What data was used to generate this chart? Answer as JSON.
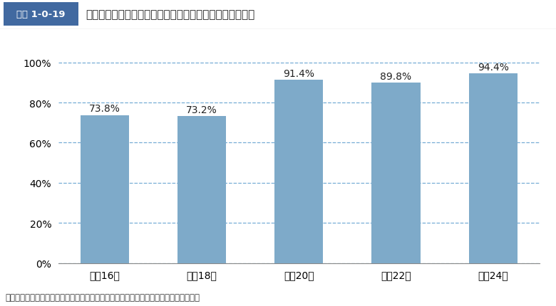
{
  "categories": [
    "平成16年",
    "平成18年",
    "平成20年",
    "平成22年",
    "平成24年"
  ],
  "values": [
    73.8,
    73.2,
    91.4,
    89.8,
    94.4
  ],
  "bar_color": "#7eaac9",
  "title_box_label": "図表 1-0-19",
  "title_box_bg": "#4169a0",
  "title_box_text_color": "#ffffff",
  "title_text": "市区町村間で相互応援協定を締結している市区町村の割合",
  "title_text_color": "#222222",
  "ylabel_ticks": [
    "0%",
    "20%",
    "40%",
    "60%",
    "80%",
    "100%"
  ],
  "ytick_values": [
    0,
    20,
    40,
    60,
    80,
    100
  ],
  "ylim": [
    0,
    107
  ],
  "grid_color": "#5599cc",
  "grid_linestyle": "--",
  "grid_alpha": 0.8,
  "label_fontsize": 10,
  "value_label_fontsize": 10,
  "caption": "出典：消防庁「消防防災・震災対策現況調査」をもとに内閣府作成．各年４月１日現在",
  "bg_color": "#ffffff",
  "bar_width": 0.5,
  "separator_color": "#888888",
  "title_separator_color": "#cccccc"
}
